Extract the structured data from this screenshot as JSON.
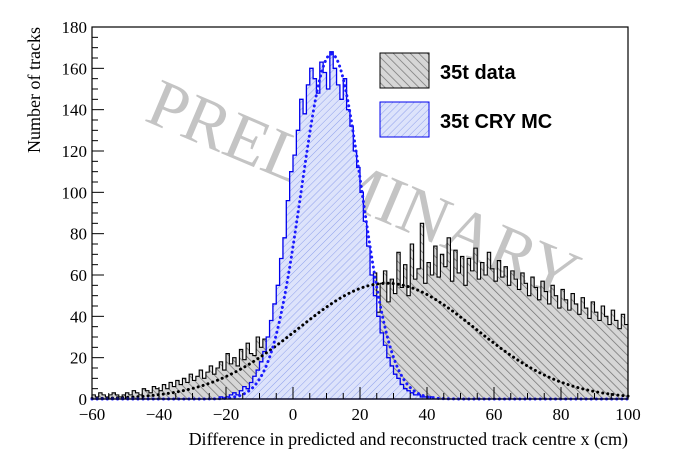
{
  "chart_data": {
    "type": "histogram",
    "title": "",
    "xlabel": "Difference in predicted and reconstructed track centre x (cm)",
    "ylabel": "Number of tracks",
    "xlim": [
      -60,
      100
    ],
    "ylim": [
      0,
      180
    ],
    "x_ticks": [
      -60,
      -40,
      -20,
      0,
      20,
      40,
      60,
      80,
      100
    ],
    "y_ticks": [
      0,
      20,
      40,
      60,
      80,
      100,
      120,
      140,
      160,
      180
    ],
    "bin_width": 1,
    "grid": false,
    "legend_position": "top-right",
    "watermark": "PRELIMINARY",
    "series": [
      {
        "name": "35t data",
        "style": "hatched-grey-histogram",
        "color": "#000000",
        "fill": "#9a9a9a",
        "fit": {
          "type": "gaussian",
          "amplitude": 56,
          "mean": 28,
          "sigma": 26.5,
          "style": "dotted",
          "color": "#000000"
        },
        "values": [
          2,
          1,
          3,
          2,
          1,
          2,
          3,
          2,
          1,
          2,
          3,
          2,
          4,
          3,
          2,
          5,
          4,
          3,
          6,
          5,
          4,
          7,
          5,
          8,
          6,
          9,
          7,
          10,
          8,
          12,
          9,
          11,
          14,
          10,
          13,
          16,
          12,
          15,
          18,
          14,
          22,
          17,
          20,
          16,
          24,
          19,
          27,
          22,
          21,
          30,
          25,
          29,
          23,
          33,
          28,
          31,
          36,
          26,
          38,
          32,
          29,
          35,
          40,
          33,
          37,
          44,
          36,
          42,
          39,
          47,
          41,
          38,
          49,
          44,
          52,
          39,
          46,
          55,
          48,
          34,
          50,
          57,
          45,
          53,
          61,
          42,
          56,
          62,
          47,
          58,
          51,
          71,
          54,
          65,
          50,
          75,
          58,
          63,
          85,
          56,
          66,
          60,
          74,
          59,
          70,
          64,
          78,
          57,
          72,
          61,
          69,
          55,
          68,
          62,
          73,
          58,
          66,
          60,
          71,
          63,
          57,
          67,
          59,
          64,
          55,
          62,
          58,
          53,
          61,
          56,
          50,
          59,
          54,
          48,
          57,
          52,
          46,
          55,
          50,
          44,
          53,
          48,
          43,
          51,
          46,
          41,
          49,
          44,
          39,
          47,
          42,
          38,
          45,
          40,
          36,
          43,
          38,
          34,
          41,
          36
        ]
      },
      {
        "name": "35t CRY MC",
        "style": "hatched-blue-histogram",
        "color": "#0000ee",
        "fill": "#c4ccf4",
        "fit": {
          "type": "gaussian",
          "amplitude": 167,
          "mean": 11.5,
          "sigma": 9,
          "style": "dotted",
          "color": "#1a1aff"
        },
        "values": [
          0,
          0,
          0,
          0,
          0,
          0,
          0,
          0,
          0,
          0,
          0,
          0,
          0,
          0,
          0,
          0,
          0,
          0,
          0,
          0,
          0,
          0,
          0,
          0,
          0,
          0,
          0,
          0,
          0,
          0,
          0,
          0,
          0,
          0,
          0,
          0,
          0,
          0,
          1,
          0,
          1,
          2,
          3,
          2,
          4,
          6,
          5,
          8,
          11,
          14,
          18,
          23,
          30,
          38,
          46,
          55,
          68,
          78,
          96,
          110,
          118,
          130,
          145,
          138,
          152,
          160,
          155,
          148,
          163,
          158,
          150,
          168,
          160,
          152,
          145,
          155,
          140,
          132,
          120,
          112,
          100,
          86,
          74,
          60,
          50,
          40,
          32,
          26,
          20,
          16,
          12,
          10,
          7,
          5,
          4,
          3,
          2,
          2,
          1,
          1,
          0,
          1,
          0,
          0,
          0,
          0,
          0,
          0,
          0,
          0,
          0,
          0,
          0,
          0,
          0,
          0,
          0,
          0,
          0,
          0,
          0,
          0,
          0,
          0,
          0,
          0,
          0,
          0,
          0,
          0,
          0,
          0,
          0,
          0,
          0,
          0,
          0,
          0,
          0,
          0,
          0,
          0,
          0,
          0,
          0,
          0,
          0,
          0,
          0,
          0,
          0,
          0,
          0,
          0,
          0,
          0,
          0,
          0,
          0,
          0
        ]
      }
    ]
  }
}
